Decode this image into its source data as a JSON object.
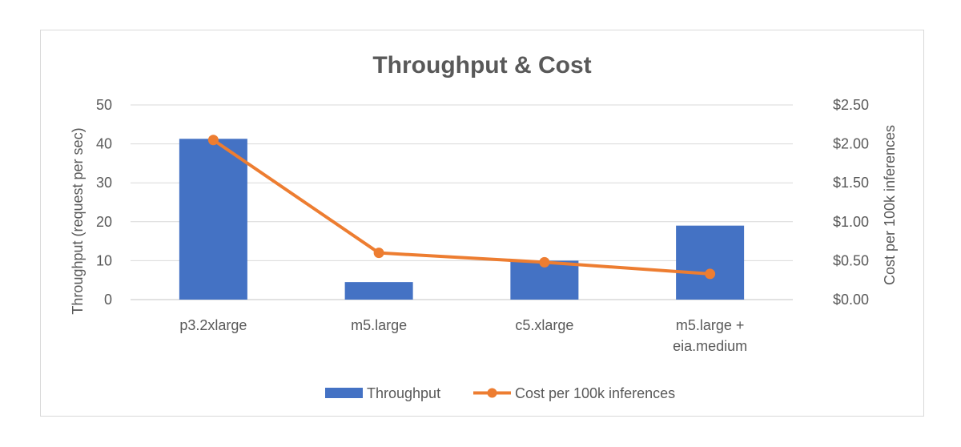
{
  "chart_data": {
    "type": "bar",
    "title": "Throughput & Cost",
    "categories": [
      [
        "p3.2xlarge"
      ],
      [
        "m5.large"
      ],
      [
        "c5.xlarge"
      ],
      [
        "m5.large +",
        "eia.medium"
      ]
    ],
    "y_left": {
      "label": "Throughput (request per sec)",
      "ylim": [
        0,
        50
      ],
      "ticks": [
        "0",
        "10",
        "20",
        "30",
        "40",
        "50"
      ]
    },
    "y_right": {
      "label": "Cost per 100k inferences",
      "ylim": [
        0,
        2.5
      ],
      "ticks": [
        "$0.00",
        "$0.50",
        "$1.00",
        "$1.50",
        "$2.00",
        "$2.50"
      ]
    },
    "series": [
      {
        "name": "Throughput",
        "type": "bar",
        "axis": "left",
        "values": [
          41.3,
          4.5,
          10,
          19
        ],
        "color": "#4472c4"
      },
      {
        "name": "Cost per 100k inferences",
        "type": "line",
        "axis": "right",
        "values": [
          2.05,
          0.6,
          0.48,
          0.33
        ],
        "color": "#ed7d31"
      }
    ],
    "grid": true,
    "legend": "bottom"
  }
}
